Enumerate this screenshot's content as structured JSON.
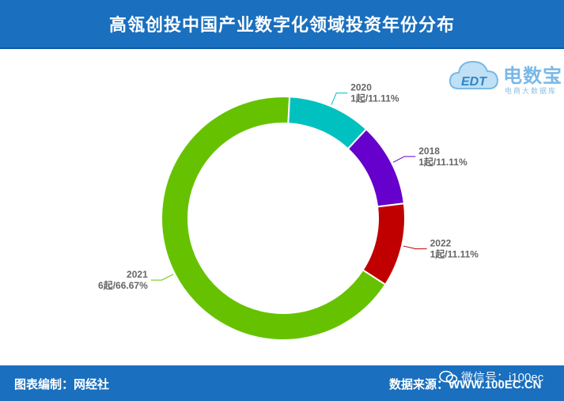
{
  "header": {
    "title": "高瓴创投中国产业数字化领域投资年份分布"
  },
  "logo": {
    "brand": "电数宝",
    "sub": "电商大数据库",
    "mark": "EDT"
  },
  "footer": {
    "editor": "图表编制：网经社",
    "source": "数据来源：WWW.100EC.CN",
    "wechat": "微信号：i100ec"
  },
  "chart_data": {
    "type": "pie",
    "donut": true,
    "title": "高瓴创投中国产业数字化领域投资年份分布",
    "slices": [
      {
        "label": "2020",
        "count": 1,
        "value": 11.11,
        "text": "1起/11.11%",
        "color": "#00c0c0"
      },
      {
        "label": "2018",
        "count": 1,
        "value": 11.11,
        "text": "1起/11.11%",
        "color": "#6600cc"
      },
      {
        "label": "2022",
        "count": 1,
        "value": 11.11,
        "text": "1起/11.11%",
        "color": "#c00000"
      },
      {
        "label": "2021",
        "count": 6,
        "value": 66.67,
        "text": "6起/66.67%",
        "color": "#66c200"
      }
    ]
  },
  "colors": {
    "header": "#1a6fbe",
    "leader": "#aaaaaa",
    "label": "#666666"
  }
}
